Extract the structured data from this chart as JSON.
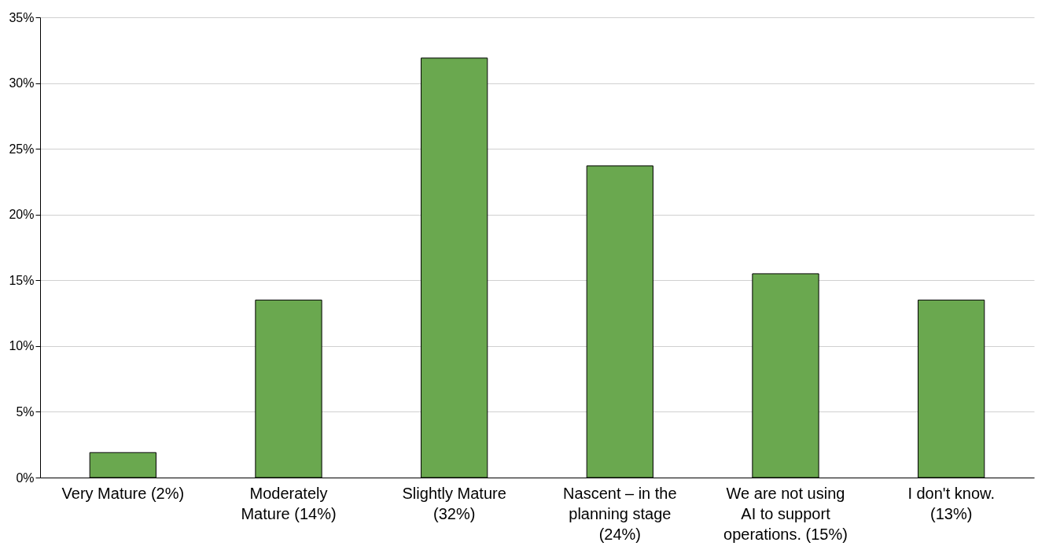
{
  "chart_data": {
    "type": "bar",
    "categories": [
      "Very Mature (2%)",
      "Moderately\nMature (14%)",
      "Slightly Mature\n(32%)",
      "Nascent – in the\nplanning stage\n(24%)",
      "We are not using\nAI to support\noperations. (15%)",
      "I don't know.\n(13%)"
    ],
    "values": [
      1.9,
      13.5,
      31.9,
      23.7,
      15.5,
      13.5
    ],
    "color": "#6aa84f",
    "ylim": [
      0,
      35
    ],
    "yticks": [
      {
        "value": 0,
        "label": "0%"
      },
      {
        "value": 5,
        "label": "5%"
      },
      {
        "value": 10,
        "label": "10%"
      },
      {
        "value": 15,
        "label": "15%"
      },
      {
        "value": 20,
        "label": "20%"
      },
      {
        "value": 25,
        "label": "25%"
      },
      {
        "value": 30,
        "label": "30%"
      },
      {
        "value": 35,
        "label": "35%"
      }
    ],
    "grid": "y"
  }
}
